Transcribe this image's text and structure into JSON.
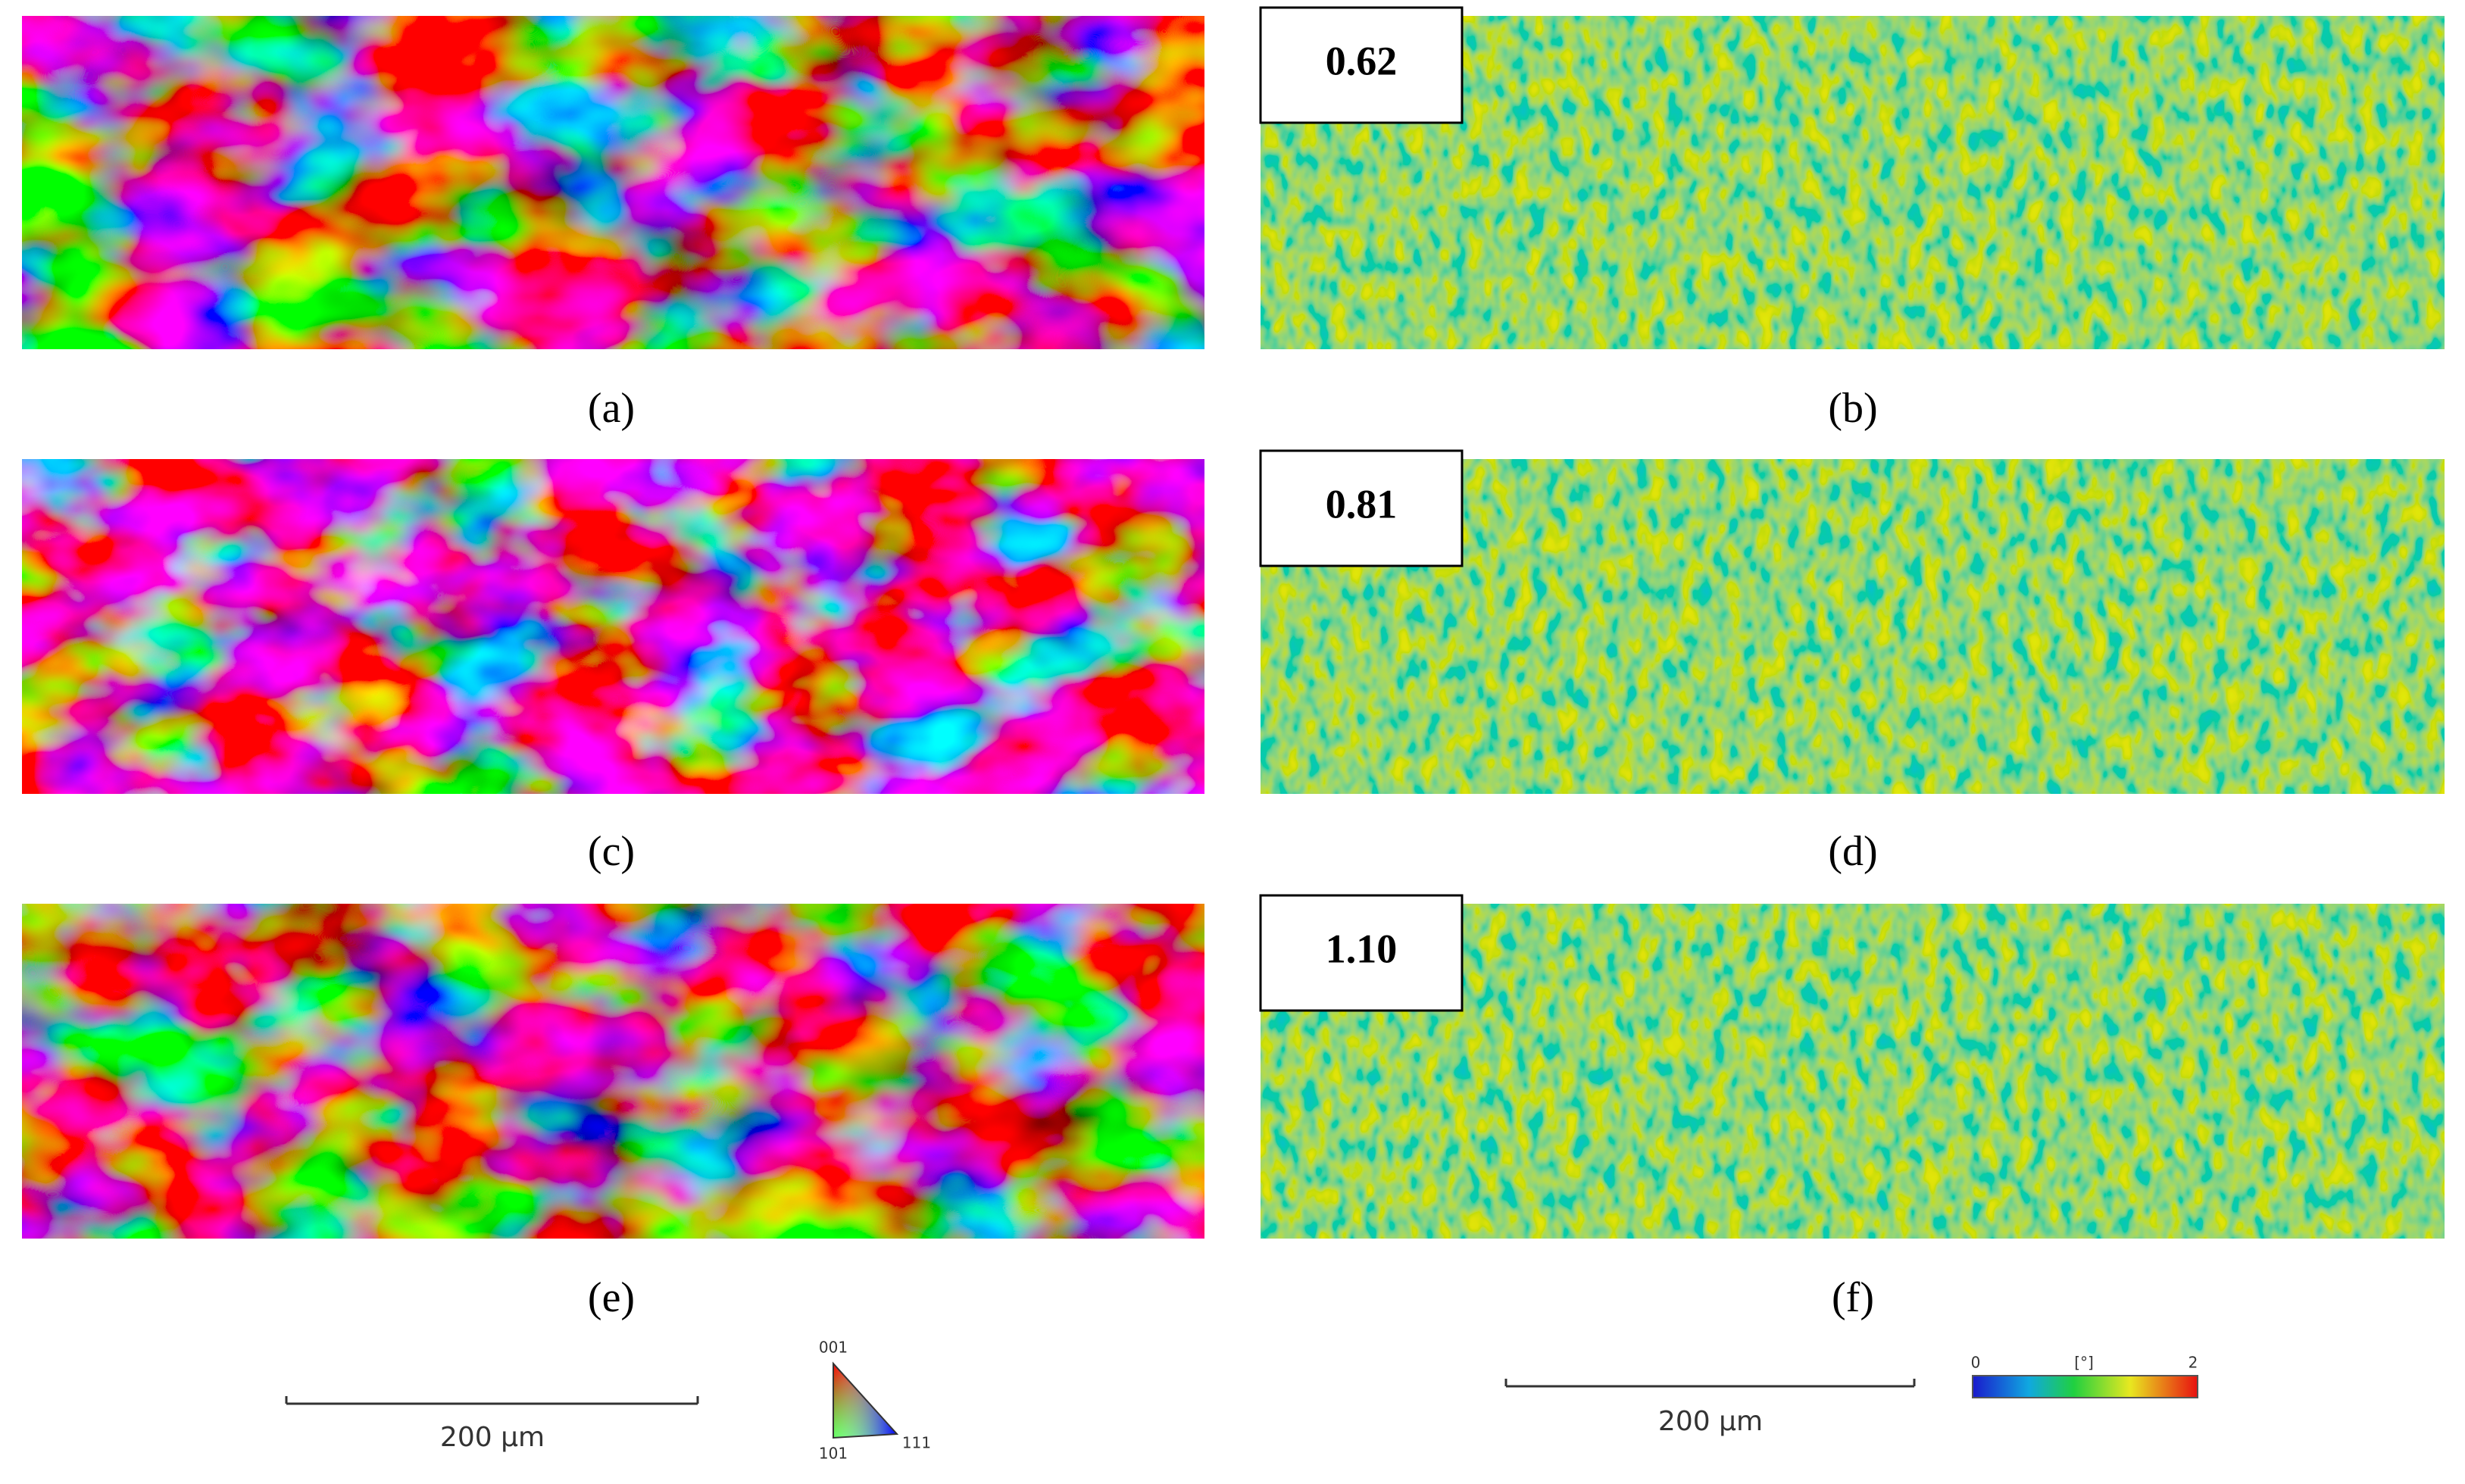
{
  "panels": [
    {
      "label": "(a)"
    },
    {
      "label": "(b)",
      "value": "0.62"
    },
    {
      "label": "(c)"
    },
    {
      "label": "(d)",
      "value": "0.81"
    },
    {
      "label": "(e)"
    },
    {
      "label": "(f)",
      "value": "1.10"
    }
  ],
  "scale_bars": [
    "200 μm",
    "200 μm"
  ],
  "ipf_legend": {
    "labels": [
      "001",
      "101",
      "111"
    ]
  },
  "kam_legend": {
    "min": "0",
    "unit": "[°]",
    "max": "2"
  }
}
